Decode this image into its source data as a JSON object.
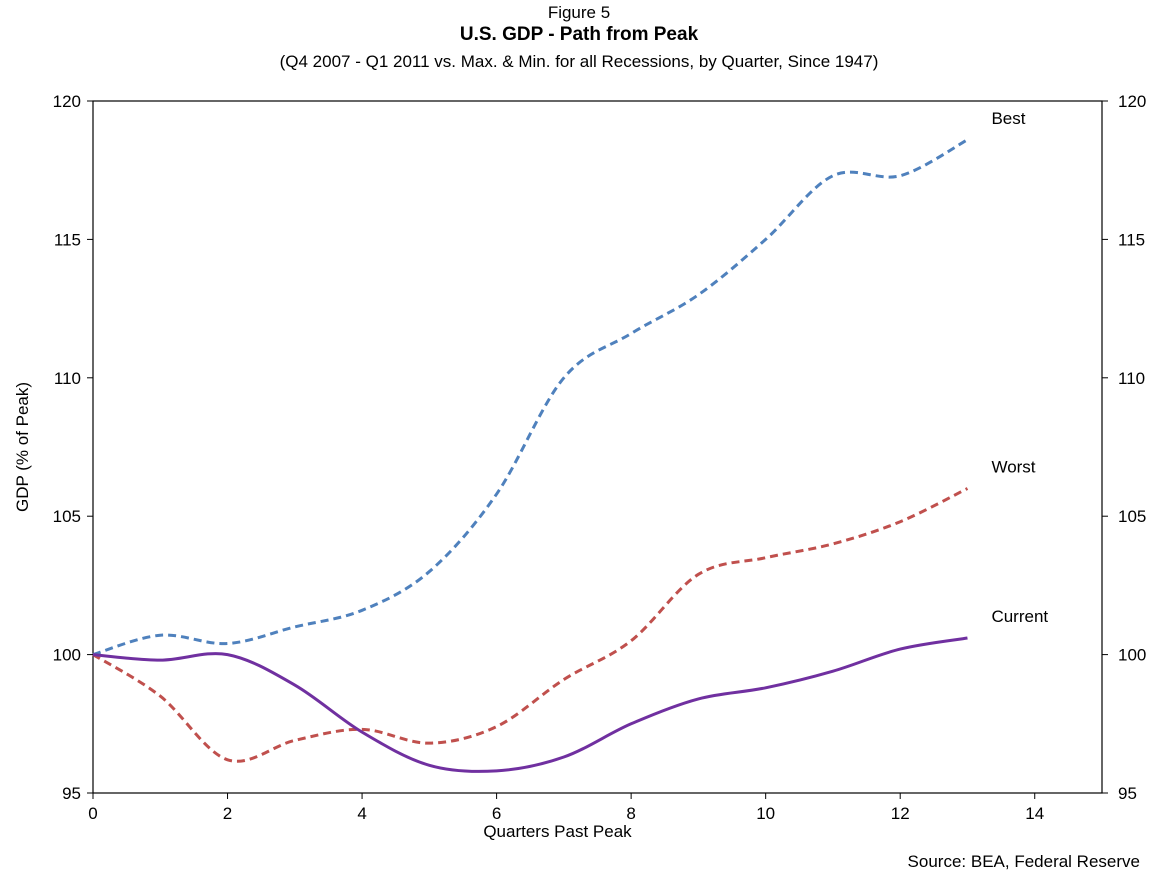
{
  "figure_label": "Figure 5",
  "source_text": "Source: BEA, Federal Reserve",
  "chart_data": {
    "type": "line",
    "title": "U.S. GDP - Path from Peak",
    "subtitle": "(Q4 2007 - Q1 2011 vs. Max. & Min. for all Recessions, by Quarter, Since 1947)",
    "xlabel": "Quarters Past Peak",
    "ylabel": "GDP (% of Peak)",
    "xlim": [
      0,
      15
    ],
    "ylim": [
      95,
      120
    ],
    "x_ticks": [
      "0",
      "2",
      "4",
      "6",
      "8",
      "10",
      "12",
      "14"
    ],
    "y_ticks": [
      "95",
      "100",
      "105",
      "110",
      "115",
      "120"
    ],
    "x": [
      0,
      1,
      2,
      3,
      4,
      5,
      6,
      7,
      8,
      9,
      10,
      11,
      12,
      13
    ],
    "grid": false,
    "series": [
      {
        "name": "Best",
        "style": "dashed",
        "color": "#4F81BD",
        "values": [
          100.0,
          100.7,
          100.4,
          101.0,
          101.6,
          103.0,
          105.8,
          110.0,
          111.6,
          113.0,
          115.0,
          117.3,
          117.3,
          118.6
        ]
      },
      {
        "name": "Worst",
        "style": "dashed",
        "color": "#C0504D",
        "values": [
          100.0,
          98.5,
          96.2,
          96.9,
          97.3,
          96.8,
          97.4,
          99.1,
          100.5,
          102.9,
          103.5,
          104.0,
          104.8,
          106.0
        ]
      },
      {
        "name": "Current",
        "style": "solid",
        "color": "#7030A0",
        "values": [
          100.0,
          99.8,
          100.0,
          98.9,
          97.2,
          96.0,
          95.8,
          96.3,
          97.5,
          98.4,
          98.8,
          99.4,
          100.2,
          100.6
        ]
      }
    ]
  }
}
